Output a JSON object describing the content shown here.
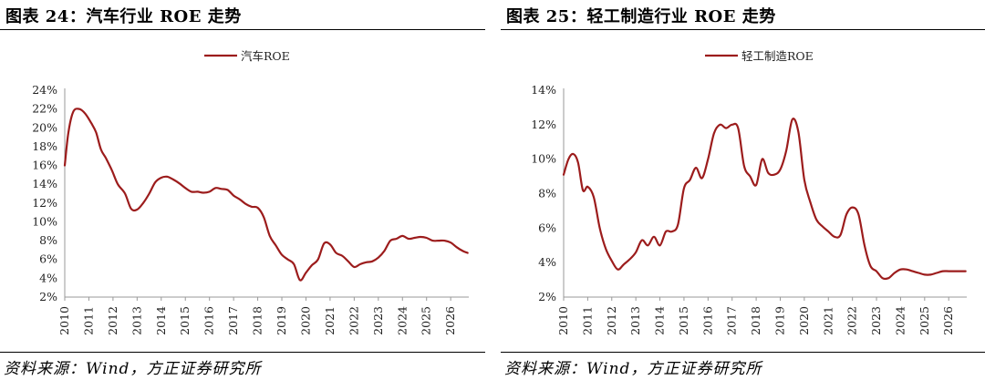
{
  "colors": {
    "line": "#9c1c1c",
    "axis": "#999999"
  },
  "charts": [
    {
      "figure_title": "图表 24：汽车行业 ROE 走势",
      "source": "资料来源：Wind，方正证券研究所",
      "chart_data": {
        "type": "line",
        "x_tick_labels": [
          "2010",
          "2011",
          "2012",
          "2013",
          "2014",
          "2015",
          "2016",
          "2017",
          "2018",
          "2019",
          "2020",
          "2021",
          "2022",
          "2023",
          "2024",
          "2025",
          "2026"
        ],
        "y_tick_labels": [
          "2%",
          "4%",
          "6%",
          "8%",
          "10%",
          "12%",
          "14%",
          "16%",
          "18%",
          "20%",
          "22%",
          "24%"
        ],
        "ylim": [
          2,
          24
        ],
        "xlim": [
          2010.0,
          2026.75
        ],
        "legend_position": "top-center",
        "series": [
          {
            "name": "汽车ROE",
            "x": [
              2010.0,
              2010.15,
              2010.35,
              2010.6,
              2010.85,
              2011.1,
              2011.3,
              2011.5,
              2011.7,
              2011.95,
              2012.2,
              2012.5,
              2012.75,
              2013.0,
              2013.25,
              2013.5,
              2013.75,
              2014.0,
              2014.25,
              2014.5,
              2014.75,
              2015.0,
              2015.25,
              2015.5,
              2015.75,
              2016.0,
              2016.25,
              2016.5,
              2016.75,
              2017.0,
              2017.25,
              2017.5,
              2017.75,
              2018.0,
              2018.25,
              2018.5,
              2018.75,
              2019.0,
              2019.25,
              2019.5,
              2019.75,
              2020.0,
              2020.25,
              2020.5,
              2020.75,
              2021.0,
              2021.25,
              2021.5,
              2021.75,
              2022.0,
              2022.25,
              2022.5,
              2022.75,
              2023.0,
              2023.25,
              2023.5,
              2023.75,
              2024.0,
              2024.25,
              2024.5,
              2024.75,
              2025.0,
              2025.25,
              2025.5,
              2025.75,
              2026.0,
              2026.25,
              2026.5,
              2026.7
            ],
            "values": [
              16.0,
              19.5,
              21.7,
              22.0,
              21.5,
              20.5,
              19.5,
              17.7,
              16.8,
              15.5,
              14.0,
              13.0,
              11.4,
              11.3,
              12.0,
              13.0,
              14.2,
              14.7,
              14.8,
              14.5,
              14.1,
              13.6,
              13.2,
              13.2,
              13.1,
              13.2,
              13.6,
              13.5,
              13.4,
              12.8,
              12.4,
              11.9,
              11.6,
              11.5,
              10.5,
              8.5,
              7.5,
              6.5,
              6.0,
              5.5,
              3.8,
              4.6,
              5.4,
              6.0,
              7.7,
              7.6,
              6.7,
              6.4,
              5.8,
              5.2,
              5.5,
              5.7,
              5.8,
              6.2,
              6.9,
              8.0,
              8.2,
              8.5,
              8.2,
              8.3,
              8.4,
              8.3,
              8.0,
              8.0,
              8.0,
              7.8,
              7.3,
              6.9,
              6.7
            ]
          }
        ]
      }
    },
    {
      "figure_title": "图表 25：轻工制造行业 ROE 走势",
      "source": "资料来源：Wind，方正证券研究所",
      "chart_data": {
        "type": "line",
        "x_tick_labels": [
          "2010",
          "2011",
          "2012",
          "2013",
          "2014",
          "2015",
          "2016",
          "2017",
          "2018",
          "2019",
          "2020",
          "2021",
          "2022",
          "2023",
          "2024",
          "2025",
          "2026"
        ],
        "y_tick_labels": [
          "2%",
          "4%",
          "6%",
          "8%",
          "10%",
          "12%",
          "14%"
        ],
        "ylim": [
          2,
          14
        ],
        "xlim": [
          2010.0,
          2026.75
        ],
        "legend_position": "top-center",
        "series": [
          {
            "name": "轻工制造ROE",
            "x": [
              2010.0,
              2010.2,
              2010.4,
              2010.6,
              2010.8,
              2011.0,
              2011.25,
              2011.5,
              2011.75,
              2012.0,
              2012.25,
              2012.5,
              2012.75,
              2013.0,
              2013.25,
              2013.5,
              2013.75,
              2014.0,
              2014.25,
              2014.5,
              2014.75,
              2015.0,
              2015.25,
              2015.5,
              2015.75,
              2016.0,
              2016.25,
              2016.5,
              2016.75,
              2017.0,
              2017.25,
              2017.5,
              2017.75,
              2018.0,
              2018.25,
              2018.5,
              2018.75,
              2019.0,
              2019.25,
              2019.5,
              2019.75,
              2020.0,
              2020.25,
              2020.5,
              2020.75,
              2021.0,
              2021.25,
              2021.5,
              2021.75,
              2022.0,
              2022.25,
              2022.5,
              2022.75,
              2023.0,
              2023.25,
              2023.5,
              2023.75,
              2024.0,
              2024.25,
              2024.5,
              2024.75,
              2025.0,
              2025.25,
              2025.5,
              2025.75,
              2026.0,
              2026.25,
              2026.5,
              2026.7
            ],
            "values": [
              9.1,
              10.0,
              10.3,
              9.8,
              8.2,
              8.4,
              7.8,
              6.0,
              4.8,
              4.1,
              3.6,
              3.9,
              4.2,
              4.6,
              5.3,
              5.0,
              5.5,
              5.0,
              5.8,
              5.8,
              6.2,
              8.3,
              8.8,
              9.5,
              8.9,
              10.0,
              11.5,
              12.0,
              11.8,
              12.0,
              11.8,
              9.6,
              9.0,
              8.5,
              10.0,
              9.2,
              9.1,
              9.4,
              10.5,
              12.3,
              11.6,
              8.8,
              7.5,
              6.5,
              6.1,
              5.8,
              5.5,
              5.6,
              6.8,
              7.2,
              6.8,
              5.0,
              3.8,
              3.5,
              3.1,
              3.1,
              3.4,
              3.6,
              3.6,
              3.5,
              3.4,
              3.3,
              3.3,
              3.4,
              3.5,
              3.5,
              3.5,
              3.5,
              3.5
            ]
          }
        ]
      }
    }
  ]
}
